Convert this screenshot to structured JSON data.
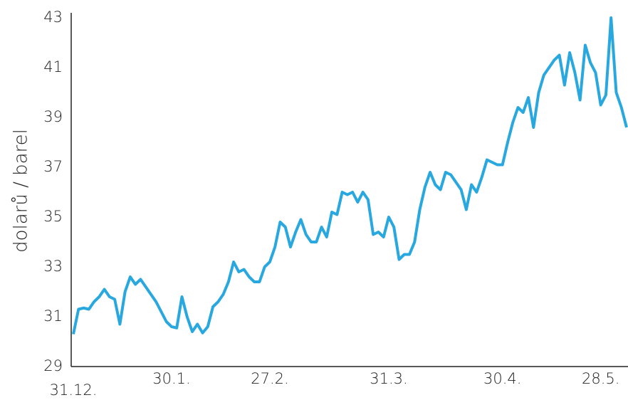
{
  "chart_data": {
    "type": "line",
    "ylabel": "dolarů / barel",
    "categories": [
      "31.12.",
      null,
      null,
      null,
      null,
      null,
      null,
      null,
      null,
      null,
      null,
      null,
      null,
      null,
      null,
      null,
      null,
      null,
      null,
      "30.1.",
      null,
      null,
      null,
      null,
      null,
      null,
      null,
      null,
      null,
      null,
      null,
      null,
      null,
      null,
      null,
      null,
      null,
      null,
      "27.2.",
      null,
      null,
      null,
      null,
      null,
      null,
      null,
      null,
      null,
      null,
      null,
      null,
      null,
      null,
      null,
      null,
      null,
      null,
      null,
      null,
      null,
      null,
      "31.3.",
      null,
      null,
      null,
      null,
      null,
      null,
      null,
      null,
      null,
      null,
      null,
      null,
      null,
      null,
      null,
      null,
      null,
      null,
      null,
      null,
      null,
      "30.4.",
      null,
      null,
      null,
      null,
      null,
      null,
      null,
      null,
      null,
      null,
      null,
      null,
      null,
      null,
      null,
      null,
      null,
      null,
      "28.5.",
      null,
      null,
      null,
      null,
      null
    ],
    "values": [
      30.3,
      31.3,
      31.35,
      31.3,
      31.6,
      31.8,
      32.1,
      31.8,
      31.7,
      30.7,
      32.0,
      32.6,
      32.3,
      32.5,
      32.2,
      31.9,
      31.6,
      31.2,
      30.8,
      30.6,
      30.55,
      31.8,
      31.0,
      30.4,
      30.7,
      30.35,
      30.6,
      31.4,
      31.6,
      31.9,
      32.4,
      33.2,
      32.8,
      32.9,
      32.6,
      32.4,
      32.4,
      33.0,
      33.2,
      33.8,
      34.8,
      34.6,
      33.8,
      34.4,
      34.9,
      34.3,
      34.0,
      34.0,
      34.6,
      34.2,
      35.2,
      35.1,
      36.0,
      35.9,
      36.0,
      35.6,
      36.0,
      35.7,
      34.3,
      34.4,
      34.2,
      35.0,
      34.6,
      33.3,
      33.5,
      33.5,
      34.0,
      35.3,
      36.2,
      36.8,
      36.3,
      36.1,
      36.8,
      36.7,
      36.4,
      36.1,
      35.3,
      36.3,
      36.0,
      36.6,
      37.3,
      37.2,
      37.1,
      37.1,
      38.0,
      38.8,
      39.4,
      39.2,
      39.8,
      38.6,
      40.0,
      40.7,
      41.0,
      41.3,
      41.5,
      40.3,
      41.6,
      40.8,
      39.7,
      41.9,
      41.2,
      40.8,
      39.5,
      39.9,
      43.0,
      40.0,
      39.4,
      38.6
    ],
    "color": "#29a8e0",
    "ylim": [
      29,
      43
    ],
    "yticks": [
      29,
      31,
      33,
      35,
      37,
      39,
      41,
      43
    ],
    "grid": false
  }
}
